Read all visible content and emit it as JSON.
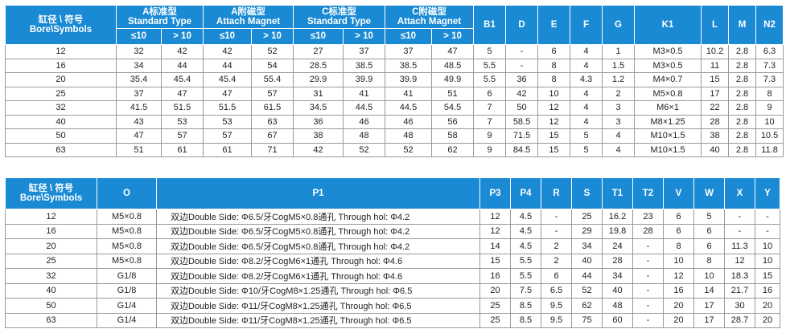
{
  "table1": {
    "header": {
      "bore": [
        "缸径 \\ 符号",
        "Bore\\Symbols"
      ],
      "groups": [
        {
          "cn": "A标准型",
          "en": "Standard Type"
        },
        {
          "cn": "A附磁型",
          "en": "Attach Magnet"
        },
        {
          "cn": "C标准型",
          "en": "Standard Type"
        },
        {
          "cn": "C附磁型",
          "en": "Attach Magnet"
        }
      ],
      "sub": [
        "≤10",
        "> 10"
      ],
      "cols": [
        "B1",
        "D",
        "E",
        "F",
        "G",
        "K1",
        "L",
        "M",
        "N2"
      ]
    },
    "rows": [
      [
        "12",
        "32",
        "42",
        "42",
        "52",
        "27",
        "37",
        "37",
        "47",
        "5",
        "-",
        "6",
        "4",
        "1",
        "M3×0.5",
        "10.2",
        "2.8",
        "6.3"
      ],
      [
        "16",
        "34",
        "44",
        "44",
        "54",
        "28.5",
        "38.5",
        "38.5",
        "48.5",
        "5.5",
        "-",
        "8",
        "4",
        "1.5",
        "M3×0.5",
        "11",
        "2.8",
        "7.3"
      ],
      [
        "20",
        "35.4",
        "45.4",
        "45.4",
        "55.4",
        "29.9",
        "39.9",
        "39.9",
        "49.9",
        "5.5",
        "36",
        "8",
        "4.3",
        "1.2",
        "M4×0.7",
        "15",
        "2.8",
        "7.3"
      ],
      [
        "25",
        "37",
        "47",
        "47",
        "57",
        "31",
        "41",
        "41",
        "51",
        "6",
        "42",
        "10",
        "4",
        "2",
        "M5×0.8",
        "17",
        "2.8",
        "8"
      ],
      [
        "32",
        "41.5",
        "51.5",
        "51.5",
        "61.5",
        "34.5",
        "44.5",
        "44.5",
        "54.5",
        "7",
        "50",
        "12",
        "4",
        "3",
        "M6×1",
        "22",
        "2.8",
        "9"
      ],
      [
        "40",
        "43",
        "53",
        "53",
        "63",
        "36",
        "46",
        "46",
        "56",
        "7",
        "58.5",
        "12",
        "4",
        "3",
        "M8×1.25",
        "28",
        "2.8",
        "10"
      ],
      [
        "50",
        "47",
        "57",
        "57",
        "67",
        "38",
        "48",
        "48",
        "58",
        "9",
        "71.5",
        "15",
        "5",
        "4",
        "M10×1.5",
        "38",
        "2.8",
        "10.5"
      ],
      [
        "63",
        "51",
        "61",
        "61",
        "71",
        "42",
        "52",
        "52",
        "62",
        "9",
        "84.5",
        "15",
        "5",
        "4",
        "M10×1.5",
        "40",
        "2.8",
        "11.8"
      ]
    ]
  },
  "table2": {
    "header": {
      "bore": [
        "缸径 \\ 符号",
        "Bore\\Symbols"
      ],
      "cols": [
        "O",
        "P1",
        "P3",
        "P4",
        "R",
        "S",
        "T1",
        "T2",
        "V",
        "W",
        "X",
        "Y"
      ]
    },
    "rows": [
      [
        "12",
        "M5×0.8",
        "双边Double Side: Φ6.5/牙CogM5×0.8通孔 Through hol: Φ4.2",
        "12",
        "4.5",
        "-",
        "25",
        "16.2",
        "23",
        "6",
        "5",
        "-",
        "-"
      ],
      [
        "16",
        "M5×0.8",
        "双边Double Side: Φ6.5/牙CogM5×0.8通孔 Through hol: Φ4.2",
        "12",
        "4.5",
        "-",
        "29",
        "19.8",
        "28",
        "6",
        "6",
        "-",
        "-"
      ],
      [
        "20",
        "M5×0.8",
        "双边Double Side: Φ6.5/牙CogM5×0.8通孔 Through hol: Φ4.2",
        "14",
        "4.5",
        "2",
        "34",
        "24",
        "-",
        "8",
        "6",
        "11.3",
        "10"
      ],
      [
        "25",
        "M5×0.8",
        "双边Double Side: Φ8.2/牙CogM6×1通孔 Through hol: Φ4.6",
        "15",
        "5.5",
        "2",
        "40",
        "28",
        "-",
        "10",
        "8",
        "12",
        "10"
      ],
      [
        "32",
        "G1/8",
        "双边Double Side: Φ8.2/牙CogM6×1通孔 Through hol: Φ4.6",
        "16",
        "5.5",
        "6",
        "44",
        "34",
        "-",
        "12",
        "10",
        "18.3",
        "15"
      ],
      [
        "40",
        "G1/8",
        "双边Double Side: Φ10/牙CogM8×1.25通孔 Through hol: Φ6.5",
        "20",
        "7.5",
        "6.5",
        "52",
        "40",
        "-",
        "16",
        "14",
        "21.7",
        "16"
      ],
      [
        "50",
        "G1/4",
        "双边Double Side: Φ11/牙CogM8×1.25通孔 Through hol: Φ6.5",
        "25",
        "8.5",
        "9.5",
        "62",
        "48",
        "-",
        "20",
        "17",
        "30",
        "20"
      ],
      [
        "63",
        "G1/4",
        "双边Double Side: Φ11/牙CogM8×1.25通孔 Through hol: Φ6.5",
        "25",
        "8.5",
        "9.5",
        "75",
        "60",
        "-",
        "20",
        "17",
        "28.7",
        "20"
      ]
    ]
  }
}
